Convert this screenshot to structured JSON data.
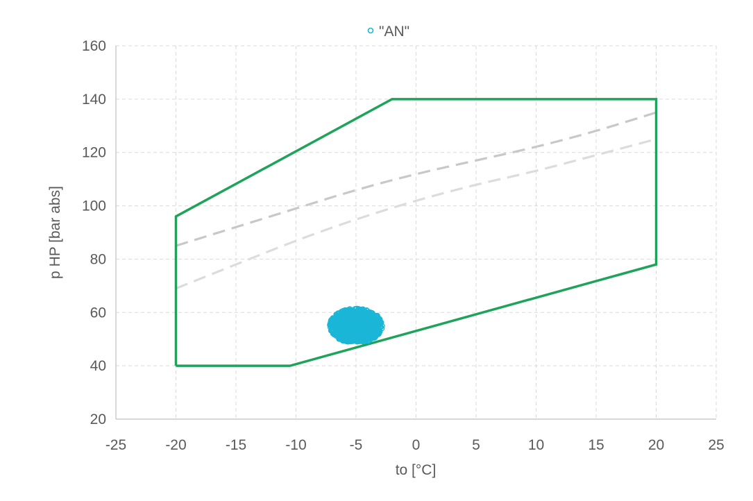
{
  "chart_data": {
    "type": "scatter",
    "title": "",
    "xlabel": "to [°C]",
    "ylabel": "p HP [bar abs]",
    "xlim": [
      -25,
      25
    ],
    "ylim": [
      20,
      160
    ],
    "xticks": [
      -25,
      -20,
      -15,
      -10,
      -5,
      0,
      5,
      10,
      15,
      20,
      25
    ],
    "yticks": [
      20,
      40,
      60,
      80,
      100,
      120,
      140,
      160
    ],
    "grid": true,
    "legend_position": "top-center",
    "colors": {
      "envelope": "#1fa35a",
      "dashed_upper": "#c8c8c8",
      "dashed_lower": "#dcdcdc",
      "points": "#1ab6d8",
      "grid": "#d9d9d9",
      "axis": "#bfbfbf"
    },
    "series": [
      {
        "name": "\"AN\"",
        "kind": "scatter",
        "x_range": [
          -7.2,
          -2.8
        ],
        "y_range": [
          48.5,
          61.5
        ],
        "center": [
          -5,
          53
        ],
        "approx_count": 900
      },
      {
        "kind": "envelope",
        "points": [
          [
            -20,
            40
          ],
          [
            -20,
            96
          ],
          [
            -2,
            140
          ],
          [
            20,
            140
          ],
          [
            20,
            78
          ],
          [
            -10.5,
            40
          ],
          [
            -20,
            40
          ]
        ]
      },
      {
        "kind": "dashed",
        "points": [
          [
            -20,
            85
          ],
          [
            -15,
            92
          ],
          [
            -10,
            99
          ],
          [
            -5,
            106
          ],
          [
            0,
            112
          ],
          [
            5,
            117
          ],
          [
            10,
            122
          ],
          [
            15,
            128
          ],
          [
            20,
            135
          ]
        ]
      },
      {
        "kind": "dashed",
        "points": [
          [
            -20,
            69
          ],
          [
            -15,
            78
          ],
          [
            -10,
            87
          ],
          [
            -5,
            95
          ],
          [
            0,
            102
          ],
          [
            5,
            108
          ],
          [
            10,
            113
          ],
          [
            15,
            119
          ],
          [
            20,
            125
          ]
        ]
      }
    ]
  }
}
